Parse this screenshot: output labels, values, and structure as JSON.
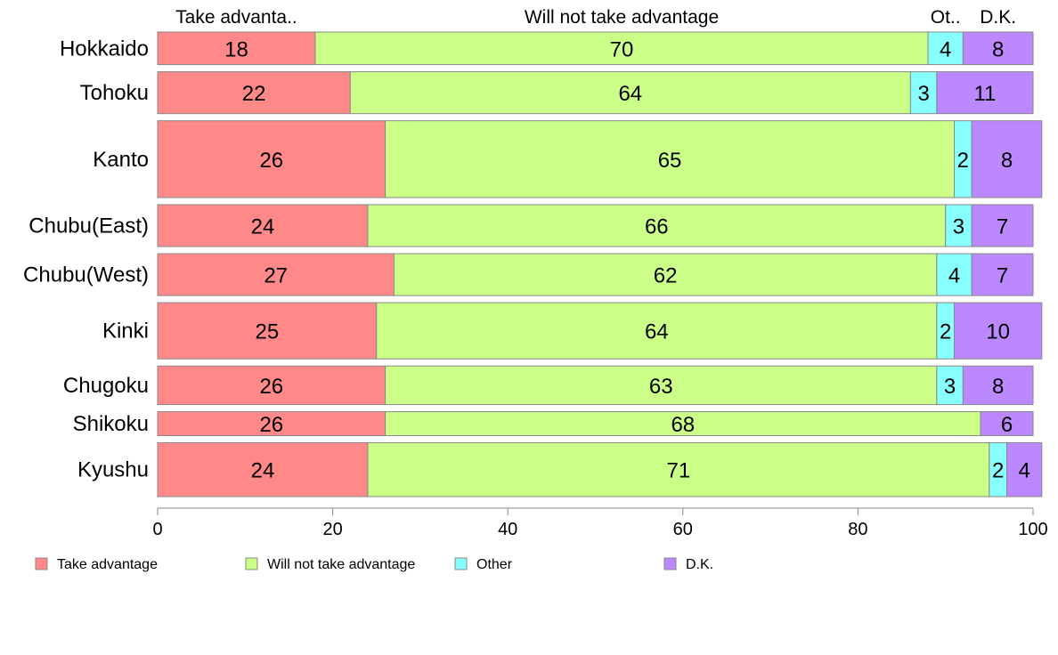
{
  "chart_data": {
    "type": "bar",
    "orientation": "horizontal-stacked",
    "categories": [
      "Hokkaido",
      "Tohoku",
      "Kanto",
      "Chubu(East)",
      "Chubu(West)",
      "Kinki",
      "Chugoku",
      "Shikoku",
      "Kyushu"
    ],
    "row_weights": [
      0.98,
      1.26,
      2.31,
      1.26,
      1.26,
      1.69,
      1.16,
      0.72,
      1.62
    ],
    "series": [
      {
        "name": "Take advantage",
        "column_label": "Take advanta..",
        "color": "#ff8888",
        "values": [
          18,
          22,
          26,
          24,
          27,
          25,
          26,
          26,
          24
        ]
      },
      {
        "name": "Will not take advantage",
        "column_label": "Will not take advantage",
        "color": "#ccff88",
        "values": [
          70,
          64,
          65,
          66,
          62,
          64,
          63,
          68,
          71
        ]
      },
      {
        "name": "Other",
        "column_label": "Ot..",
        "color": "#88ffff",
        "values": [
          4,
          3,
          2,
          3,
          4,
          2,
          3,
          0,
          2
        ]
      },
      {
        "name": "D.K.",
        "column_label": "D.K.",
        "color": "#bb88ff",
        "values": [
          8,
          11,
          8,
          7,
          7,
          10,
          8,
          6,
          4
        ]
      }
    ],
    "xlim": [
      0,
      100
    ],
    "xticks": [
      0,
      20,
      40,
      60,
      80,
      100
    ],
    "legend_position": "bottom",
    "grid": false
  }
}
